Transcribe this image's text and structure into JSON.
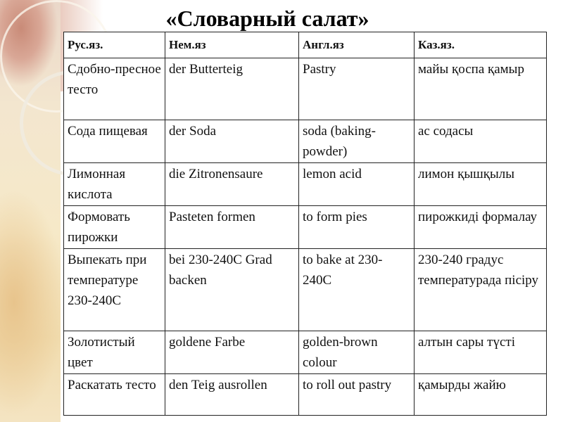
{
  "title": "«Словарный салат»",
  "table": {
    "headers": [
      "Рус.яз.",
      "Нем.яз",
      "Англ.яз",
      "Каз.яз."
    ],
    "rows": [
      [
        "Сдобно-пресное тесто",
        "der Butterteig",
        "Pastry",
        "майы қоспа қамыр"
      ],
      [
        "Сода пищевая",
        "der Soda",
        "soda (baking-powder)",
        "ас содасы"
      ],
      [
        "Лимонная кислота",
        "die Zitronensaure",
        "lemon acid",
        "лимон қышқылы"
      ],
      [
        "Формовать пирожки",
        "Pasteten formen",
        "to form pies",
        "пирожкиді формалау"
      ],
      [
        "Выпекать при температуре 230-240C",
        "bei 230-240C Grad backen",
        "to bake at 230-240C",
        "230-240 градус температурада пісіру"
      ],
      [
        "Золотистый цвет",
        "goldene Farbe",
        "golden-brown colour",
        "алтын сары түсті"
      ],
      [
        "Раскатать тесто",
        "den Teig ausrollen",
        "to roll out pastry",
        "қамырды жайю"
      ]
    ]
  }
}
